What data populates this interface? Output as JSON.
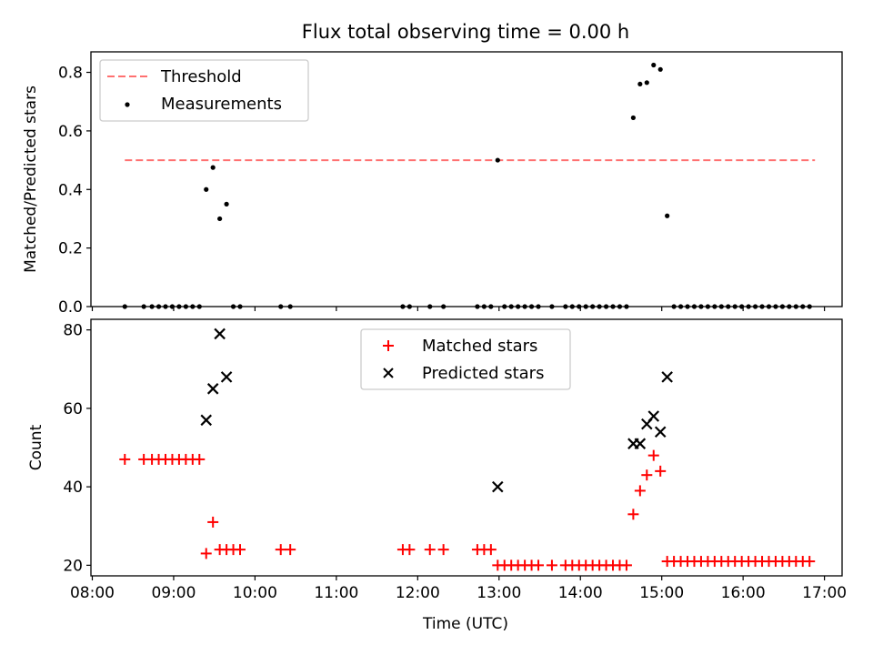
{
  "chart_data": [
    {
      "type": "scatter",
      "title": "Flux total observing time = 0.00 h",
      "xlabel": "",
      "ylabel": "Matched/Predicted stars",
      "xlim": [
        "07:59",
        "17:13"
      ],
      "ylim": [
        0,
        0.87
      ],
      "yticks": [
        "0.0",
        "0.2",
        "0.4",
        "0.6",
        "0.8"
      ],
      "xtick_labels_shown": false,
      "legend": {
        "position": "upper-left",
        "entries": [
          "Threshold",
          "Measurements"
        ]
      },
      "threshold": {
        "name": "Threshold",
        "value": 0.5,
        "x_start": "08:24",
        "x_end": "16:53",
        "color": "#ff7070",
        "style": "dashed"
      },
      "series": [
        {
          "name": "Measurements",
          "marker": "dot",
          "color": "#000000",
          "points": [
            [
              "08:24",
              0
            ],
            [
              "08:38",
              0
            ],
            [
              "08:44",
              0
            ],
            [
              "08:49",
              0
            ],
            [
              "08:54",
              0
            ],
            [
              "08:59",
              0
            ],
            [
              "09:04",
              0
            ],
            [
              "09:09",
              0
            ],
            [
              "09:14",
              0
            ],
            [
              "09:19",
              0
            ],
            [
              "09:24",
              0.4
            ],
            [
              "09:29",
              0.475
            ],
            [
              "09:34",
              0.3
            ],
            [
              "09:39",
              0.35
            ],
            [
              "09:44",
              0
            ],
            [
              "09:49",
              0
            ],
            [
              "10:19",
              0
            ],
            [
              "10:26",
              0
            ],
            [
              "11:49",
              0
            ],
            [
              "11:54",
              0
            ],
            [
              "12:09",
              0
            ],
            [
              "12:19",
              0
            ],
            [
              "12:44",
              0
            ],
            [
              "12:49",
              0
            ],
            [
              "12:54",
              0
            ],
            [
              "12:59",
              0.5
            ],
            [
              "13:04",
              0
            ],
            [
              "13:09",
              0
            ],
            [
              "13:14",
              0
            ],
            [
              "13:19",
              0
            ],
            [
              "13:24",
              0
            ],
            [
              "13:29",
              0
            ],
            [
              "13:39",
              0
            ],
            [
              "13:49",
              0
            ],
            [
              "13:54",
              0
            ],
            [
              "13:59",
              0
            ],
            [
              "14:04",
              0
            ],
            [
              "14:09",
              0
            ],
            [
              "14:14",
              0
            ],
            [
              "14:19",
              0
            ],
            [
              "14:24",
              0
            ],
            [
              "14:29",
              0
            ],
            [
              "14:34",
              0
            ],
            [
              "14:39",
              0.645
            ],
            [
              "14:44",
              0.76
            ],
            [
              "14:49",
              0.765
            ],
            [
              "14:54",
              0.825
            ],
            [
              "14:59",
              0.81
            ],
            [
              "15:04",
              0.31
            ],
            [
              "15:09",
              0
            ],
            [
              "15:14",
              0
            ],
            [
              "15:19",
              0
            ],
            [
              "15:24",
              0
            ],
            [
              "15:29",
              0
            ],
            [
              "15:34",
              0
            ],
            [
              "15:39",
              0
            ],
            [
              "15:44",
              0
            ],
            [
              "15:49",
              0
            ],
            [
              "15:54",
              0
            ],
            [
              "15:59",
              0
            ],
            [
              "16:04",
              0
            ],
            [
              "16:09",
              0
            ],
            [
              "16:14",
              0
            ],
            [
              "16:19",
              0
            ],
            [
              "16:24",
              0
            ],
            [
              "16:29",
              0
            ],
            [
              "16:34",
              0
            ],
            [
              "16:39",
              0
            ],
            [
              "16:44",
              0
            ],
            [
              "16:49",
              0
            ]
          ]
        }
      ]
    },
    {
      "type": "scatter",
      "title": "",
      "xlabel": "Time (UTC)",
      "ylabel": "Count",
      "xlim": [
        "07:59",
        "17:13"
      ],
      "ylim": [
        17.3,
        82.7
      ],
      "yticks": [
        "20",
        "40",
        "60",
        "80"
      ],
      "xticks": [
        "08:00",
        "09:00",
        "10:00",
        "11:00",
        "12:00",
        "13:00",
        "14:00",
        "15:00",
        "16:00",
        "17:00"
      ],
      "legend": {
        "position": "upper-center",
        "entries": [
          "Matched stars",
          "Predicted stars"
        ]
      },
      "series": [
        {
          "name": "Matched stars",
          "marker": "plus",
          "color": "#ff0000",
          "points": [
            [
              "08:24",
              47
            ],
            [
              "08:38",
              47
            ],
            [
              "08:44",
              47
            ],
            [
              "08:49",
              47
            ],
            [
              "08:54",
              47
            ],
            [
              "08:59",
              47
            ],
            [
              "09:04",
              47
            ],
            [
              "09:09",
              47
            ],
            [
              "09:14",
              47
            ],
            [
              "09:19",
              47
            ],
            [
              "09:24",
              23
            ],
            [
              "09:29",
              31
            ],
            [
              "09:34",
              24
            ],
            [
              "09:39",
              24
            ],
            [
              "09:44",
              24
            ],
            [
              "09:49",
              24
            ],
            [
              "10:19",
              24
            ],
            [
              "10:26",
              24
            ],
            [
              "11:49",
              24
            ],
            [
              "11:54",
              24
            ],
            [
              "12:09",
              24
            ],
            [
              "12:19",
              24
            ],
            [
              "12:44",
              24
            ],
            [
              "12:49",
              24
            ],
            [
              "12:54",
              24
            ],
            [
              "12:59",
              20
            ],
            [
              "13:04",
              20
            ],
            [
              "13:09",
              20
            ],
            [
              "13:14",
              20
            ],
            [
              "13:19",
              20
            ],
            [
              "13:24",
              20
            ],
            [
              "13:29",
              20
            ],
            [
              "13:39",
              20
            ],
            [
              "13:49",
              20
            ],
            [
              "13:54",
              20
            ],
            [
              "13:59",
              20
            ],
            [
              "14:04",
              20
            ],
            [
              "14:09",
              20
            ],
            [
              "14:14",
              20
            ],
            [
              "14:19",
              20
            ],
            [
              "14:24",
              20
            ],
            [
              "14:29",
              20
            ],
            [
              "14:34",
              20
            ],
            [
              "14:39",
              33
            ],
            [
              "14:44",
              39
            ],
            [
              "14:49",
              43
            ],
            [
              "14:54",
              48
            ],
            [
              "14:59",
              44
            ],
            [
              "15:04",
              21
            ],
            [
              "15:09",
              21
            ],
            [
              "15:14",
              21
            ],
            [
              "15:19",
              21
            ],
            [
              "15:24",
              21
            ],
            [
              "15:29",
              21
            ],
            [
              "15:34",
              21
            ],
            [
              "15:39",
              21
            ],
            [
              "15:44",
              21
            ],
            [
              "15:49",
              21
            ],
            [
              "15:54",
              21
            ],
            [
              "15:59",
              21
            ],
            [
              "16:04",
              21
            ],
            [
              "16:09",
              21
            ],
            [
              "16:14",
              21
            ],
            [
              "16:19",
              21
            ],
            [
              "16:24",
              21
            ],
            [
              "16:29",
              21
            ],
            [
              "16:34",
              21
            ],
            [
              "16:39",
              21
            ],
            [
              "16:44",
              21
            ],
            [
              "16:49",
              21
            ]
          ]
        },
        {
          "name": "Predicted stars",
          "marker": "x",
          "color": "#000000",
          "points": [
            [
              "09:24",
              57
            ],
            [
              "09:29",
              65
            ],
            [
              "09:34",
              79
            ],
            [
              "09:39",
              68
            ],
            [
              "12:59",
              40
            ],
            [
              "14:39",
              51
            ],
            [
              "14:44",
              51
            ],
            [
              "14:49",
              56
            ],
            [
              "14:54",
              58
            ],
            [
              "14:59",
              54
            ],
            [
              "15:04",
              68
            ]
          ]
        }
      ]
    }
  ]
}
